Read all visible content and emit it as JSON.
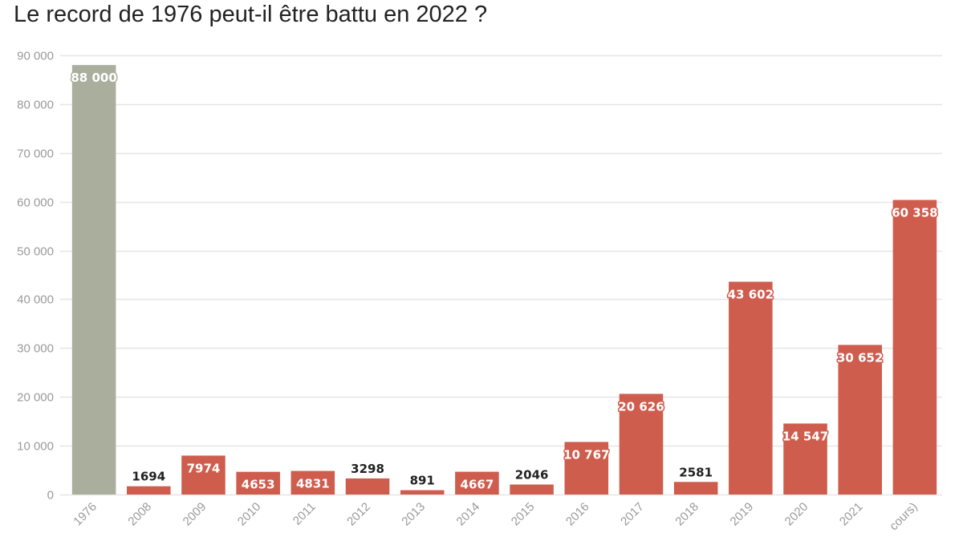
{
  "chart_data": {
    "type": "bar",
    "title": "Le record de 1976 peut-il être battu en 2022 ?",
    "categories": [
      "1976",
      "2008",
      "2009",
      "2010",
      "2011",
      "2012",
      "2013",
      "2014",
      "2015",
      "2016",
      "2017",
      "2018",
      "2019",
      "2020",
      "2021",
      "cours)"
    ],
    "values": [
      88000,
      1694,
      7974,
      4653,
      4831,
      3298,
      891,
      4667,
      2046,
      10767,
      20626,
      2581,
      43602,
      14547,
      30652,
      60358
    ],
    "data_labels": [
      "88 000",
      "1694",
      "7974",
      "4653",
      "4831",
      "3298",
      "891",
      "4667",
      "2046",
      "10 767",
      "20 626",
      "2581",
      "43 602",
      "14 547",
      "30 652",
      "60 358"
    ],
    "ylim": [
      0,
      90000
    ],
    "yticks": [
      0,
      10000,
      20000,
      30000,
      40000,
      50000,
      60000,
      70000,
      80000,
      90000
    ],
    "ytick_labels": [
      "0",
      "10 000",
      "20 000",
      "30 000",
      "40 000",
      "50 000",
      "60 000",
      "70 000",
      "80 000",
      "90 000"
    ],
    "xlabel": "",
    "ylabel": "",
    "grid": true,
    "colors": {
      "highlight": "#a9ae9d",
      "default": "#cf5d4e",
      "gridline": "#e6e6e6"
    },
    "highlight_index": 0
  }
}
